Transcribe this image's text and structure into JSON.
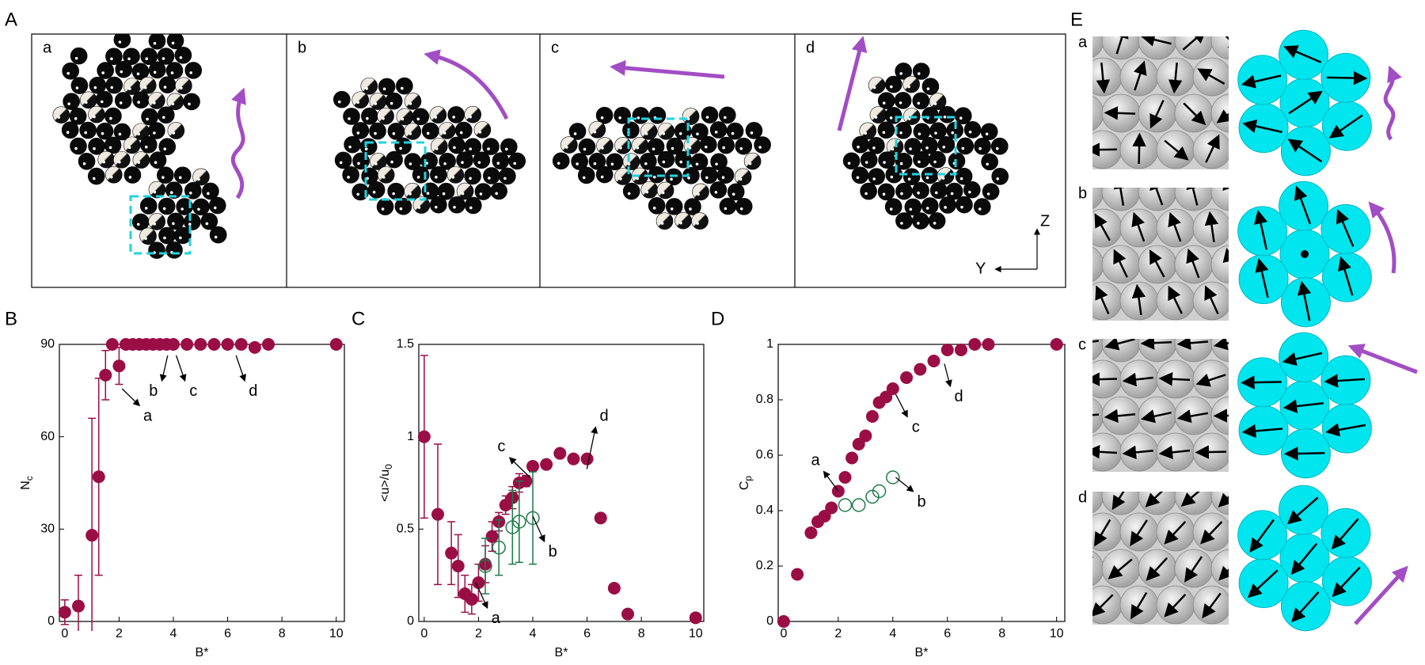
{
  "panel_labels": [
    "A",
    "B",
    "C",
    "D",
    "E"
  ],
  "panel_a": {
    "subpanels": [
      "a",
      "b",
      "c",
      "d"
    ],
    "axis_labels": [
      "Z",
      "Y"
    ]
  },
  "panel_e": {
    "rows": [
      "a",
      "b",
      "c",
      "d"
    ]
  },
  "chart_data": [
    {
      "type": "scatter",
      "xlabel": "B*",
      "ylabel": {
        "main": "N",
        "sub": "c"
      },
      "xlim": [
        -0.2,
        10.3
      ],
      "ylim": [
        0,
        90
      ],
      "xticks": [
        0,
        2,
        4,
        6,
        8,
        10
      ],
      "yticks": [
        0,
        30,
        60,
        90
      ],
      "annotations": [
        "a",
        "b",
        "c",
        "d"
      ],
      "series": [
        {
          "color": "#9b0d45",
          "filled": true,
          "x": [
            0,
            0.5,
            1,
            1.25,
            1.5,
            1.75,
            2,
            2.25,
            2.5,
            2.75,
            3,
            3.25,
            3.5,
            3.75,
            4,
            4.5,
            5,
            5.5,
            6,
            6.5,
            7,
            7.5,
            10
          ],
          "values": [
            3,
            5,
            28,
            47,
            80,
            90,
            83,
            90,
            90,
            90,
            90,
            90,
            90,
            90,
            90,
            90,
            90,
            90,
            90,
            90,
            89,
            90,
            90
          ],
          "errors": [
            4,
            10,
            38,
            32,
            8,
            1,
            6,
            1,
            1,
            1,
            0,
            0,
            0,
            0,
            0,
            0,
            0,
            0,
            0,
            0,
            0,
            0,
            0
          ]
        }
      ]
    },
    {
      "type": "scatter",
      "xlabel": "B*",
      "ylabel": {
        "main": "<u>/u",
        "sub": "0"
      },
      "xlim": [
        -0.2,
        10.3
      ],
      "ylim": [
        0,
        1.5
      ],
      "xticks": [
        0,
        2,
        4,
        6,
        8,
        10
      ],
      "yticks": [
        0,
        0.5,
        1,
        1.5
      ],
      "annotations": [
        "a",
        "b",
        "c",
        "d"
      ],
      "series": [
        {
          "color": "#9b0d45",
          "filled": true,
          "x": [
            0,
            0.5,
            1,
            1.25,
            1.5,
            1.75,
            2,
            2.25,
            2.5,
            2.75,
            3,
            3.25,
            3.5,
            3.75,
            4,
            4.5,
            5,
            5.5,
            6,
            6.5,
            7,
            7.5,
            10
          ],
          "values": [
            1.0,
            0.58,
            0.37,
            0.3,
            0.15,
            0.12,
            0.21,
            0.31,
            0.46,
            0.54,
            0.63,
            0.67,
            0.75,
            0.76,
            0.84,
            0.85,
            0.91,
            0.88,
            0.88,
            0.56,
            0.18,
            0.04,
            0.02
          ],
          "errors": [
            0.44,
            0.38,
            0.17,
            0.17,
            0.1,
            0.08,
            0.1,
            0.1,
            0.08,
            0.05,
            0.05,
            0.06,
            0.05,
            0.03,
            0.01,
            0,
            0,
            0,
            0,
            0,
            0,
            0,
            0
          ]
        },
        {
          "color": "#1e7a4a",
          "filled": false,
          "x": [
            2.25,
            2.75,
            3.25,
            3.5,
            4
          ],
          "values": [
            0.3,
            0.4,
            0.51,
            0.54,
            0.56
          ],
          "errors": [
            0.15,
            0.15,
            0.2,
            0.22,
            0.25
          ]
        }
      ]
    },
    {
      "type": "scatter",
      "xlabel": "B*",
      "ylabel": {
        "main": "C",
        "sub": "p"
      },
      "xlim": [
        -0.2,
        10.3
      ],
      "ylim": [
        0,
        1
      ],
      "xticks": [
        0,
        2,
        4,
        6,
        8,
        10
      ],
      "yticks": [
        0,
        0.2,
        0.4,
        0.6,
        0.8,
        1
      ],
      "annotations": [
        "a",
        "b",
        "c",
        "d"
      ],
      "series": [
        {
          "color": "#9b0d45",
          "filled": true,
          "x": [
            0,
            0.5,
            1,
            1.25,
            1.5,
            1.75,
            2,
            2.25,
            2.5,
            2.75,
            3,
            3.25,
            3.5,
            3.75,
            4,
            4.5,
            5,
            5.5,
            6,
            6.5,
            7,
            7.5,
            10
          ],
          "values": [
            0,
            0.17,
            0.32,
            0.36,
            0.38,
            0.41,
            0.47,
            0.52,
            0.59,
            0.64,
            0.67,
            0.74,
            0.79,
            0.81,
            0.84,
            0.88,
            0.91,
            0.94,
            0.98,
            0.98,
            1.0,
            1.0,
            1.0
          ]
        },
        {
          "color": "#1e7a4a",
          "filled": false,
          "x": [
            2.25,
            2.75,
            3.25,
            3.5,
            4
          ],
          "values": [
            0.42,
            0.42,
            0.45,
            0.47,
            0.52
          ]
        }
      ]
    }
  ]
}
